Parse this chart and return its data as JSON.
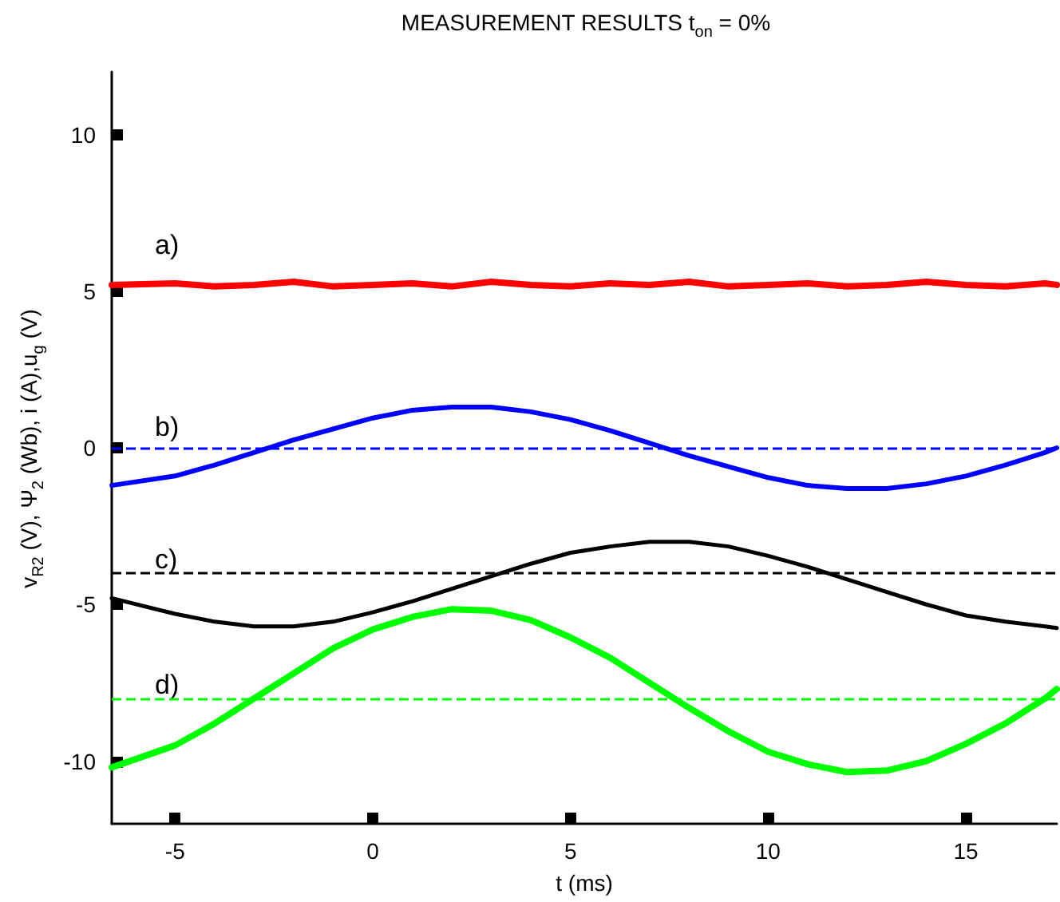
{
  "chart_data": {
    "type": "line",
    "title": "MEASUREMENT RESULTS t$_{on}$ = 0%",
    "xlabel": "t (ms)",
    "ylabel": "v$_{R2}$ (V), Ψ$_{2}$ (Wb), i (A),u$_{g}$ (V)",
    "x": [
      -6.6,
      -5,
      -4,
      -3,
      -2,
      -1,
      0,
      1,
      2,
      3,
      4,
      5,
      6,
      7,
      8,
      9,
      10,
      11,
      12,
      13,
      14,
      15,
      16,
      17,
      17.3
    ],
    "series": [
      {
        "color": "#ff0000",
        "values": [
          5.2,
          5.25,
          5.15,
          5.2,
          5.3,
          5.15,
          5.2,
          5.25,
          5.15,
          5.3,
          5.2,
          5.15,
          5.25,
          5.2,
          5.3,
          5.15,
          5.2,
          5.25,
          5.15,
          5.2,
          5.3,
          5.2,
          5.15,
          5.25,
          5.2
        ]
      },
      {
        "color": "#0000ff",
        "values": [
          -1.2,
          -0.9,
          -0.55,
          -0.15,
          0.25,
          0.6,
          0.95,
          1.2,
          1.3,
          1.3,
          1.15,
          0.9,
          0.55,
          0.15,
          -0.25,
          -0.6,
          -0.95,
          -1.2,
          -1.3,
          -1.3,
          -1.15,
          -0.9,
          -0.55,
          -0.15,
          0
        ]
      },
      {
        "color": "#000000",
        "values": [
          -4.8,
          -5.3,
          -5.55,
          -5.7,
          -5.7,
          -5.55,
          -5.25,
          -4.9,
          -4.5,
          -4.1,
          -3.7,
          -3.35,
          -3.15,
          -3.0,
          -3.0,
          -3.15,
          -3.45,
          -3.8,
          -4.2,
          -4.6,
          -5.0,
          -5.35,
          -5.55,
          -5.7,
          -5.75
        ]
      },
      {
        "color": "#00ff00",
        "values": [
          -10.2,
          -9.5,
          -8.8,
          -8.0,
          -7.2,
          -6.4,
          -5.8,
          -5.4,
          -5.15,
          -5.2,
          -5.5,
          -6.05,
          -6.7,
          -7.5,
          -8.3,
          -9.05,
          -9.7,
          -10.1,
          -10.35,
          -10.3,
          -10.0,
          -9.45,
          -8.8,
          -8.0,
          -7.7
        ]
      }
    ],
    "ref_lines": [
      {
        "axis": "y",
        "value": 0,
        "color": "#0000ff",
        "line_style": "dashed"
      },
      {
        "axis": "y",
        "value": -4,
        "color": "#000000",
        "line_style": "dashed"
      },
      {
        "axis": "y",
        "value": -8,
        "color": "#00ff00",
        "line_style": "dashed"
      }
    ],
    "annotations": [
      "a)",
      "b)",
      "c)",
      "d)"
    ],
    "xlim": [
      -6.6,
      17.3
    ],
    "xticks": [
      -5,
      0,
      5,
      10,
      15
    ],
    "ylim": [
      -12,
      12
    ],
    "yticks": [
      -10,
      -5,
      0,
      5,
      10
    ],
    "grid": false,
    "marker": "none",
    "line_style": "solid"
  }
}
